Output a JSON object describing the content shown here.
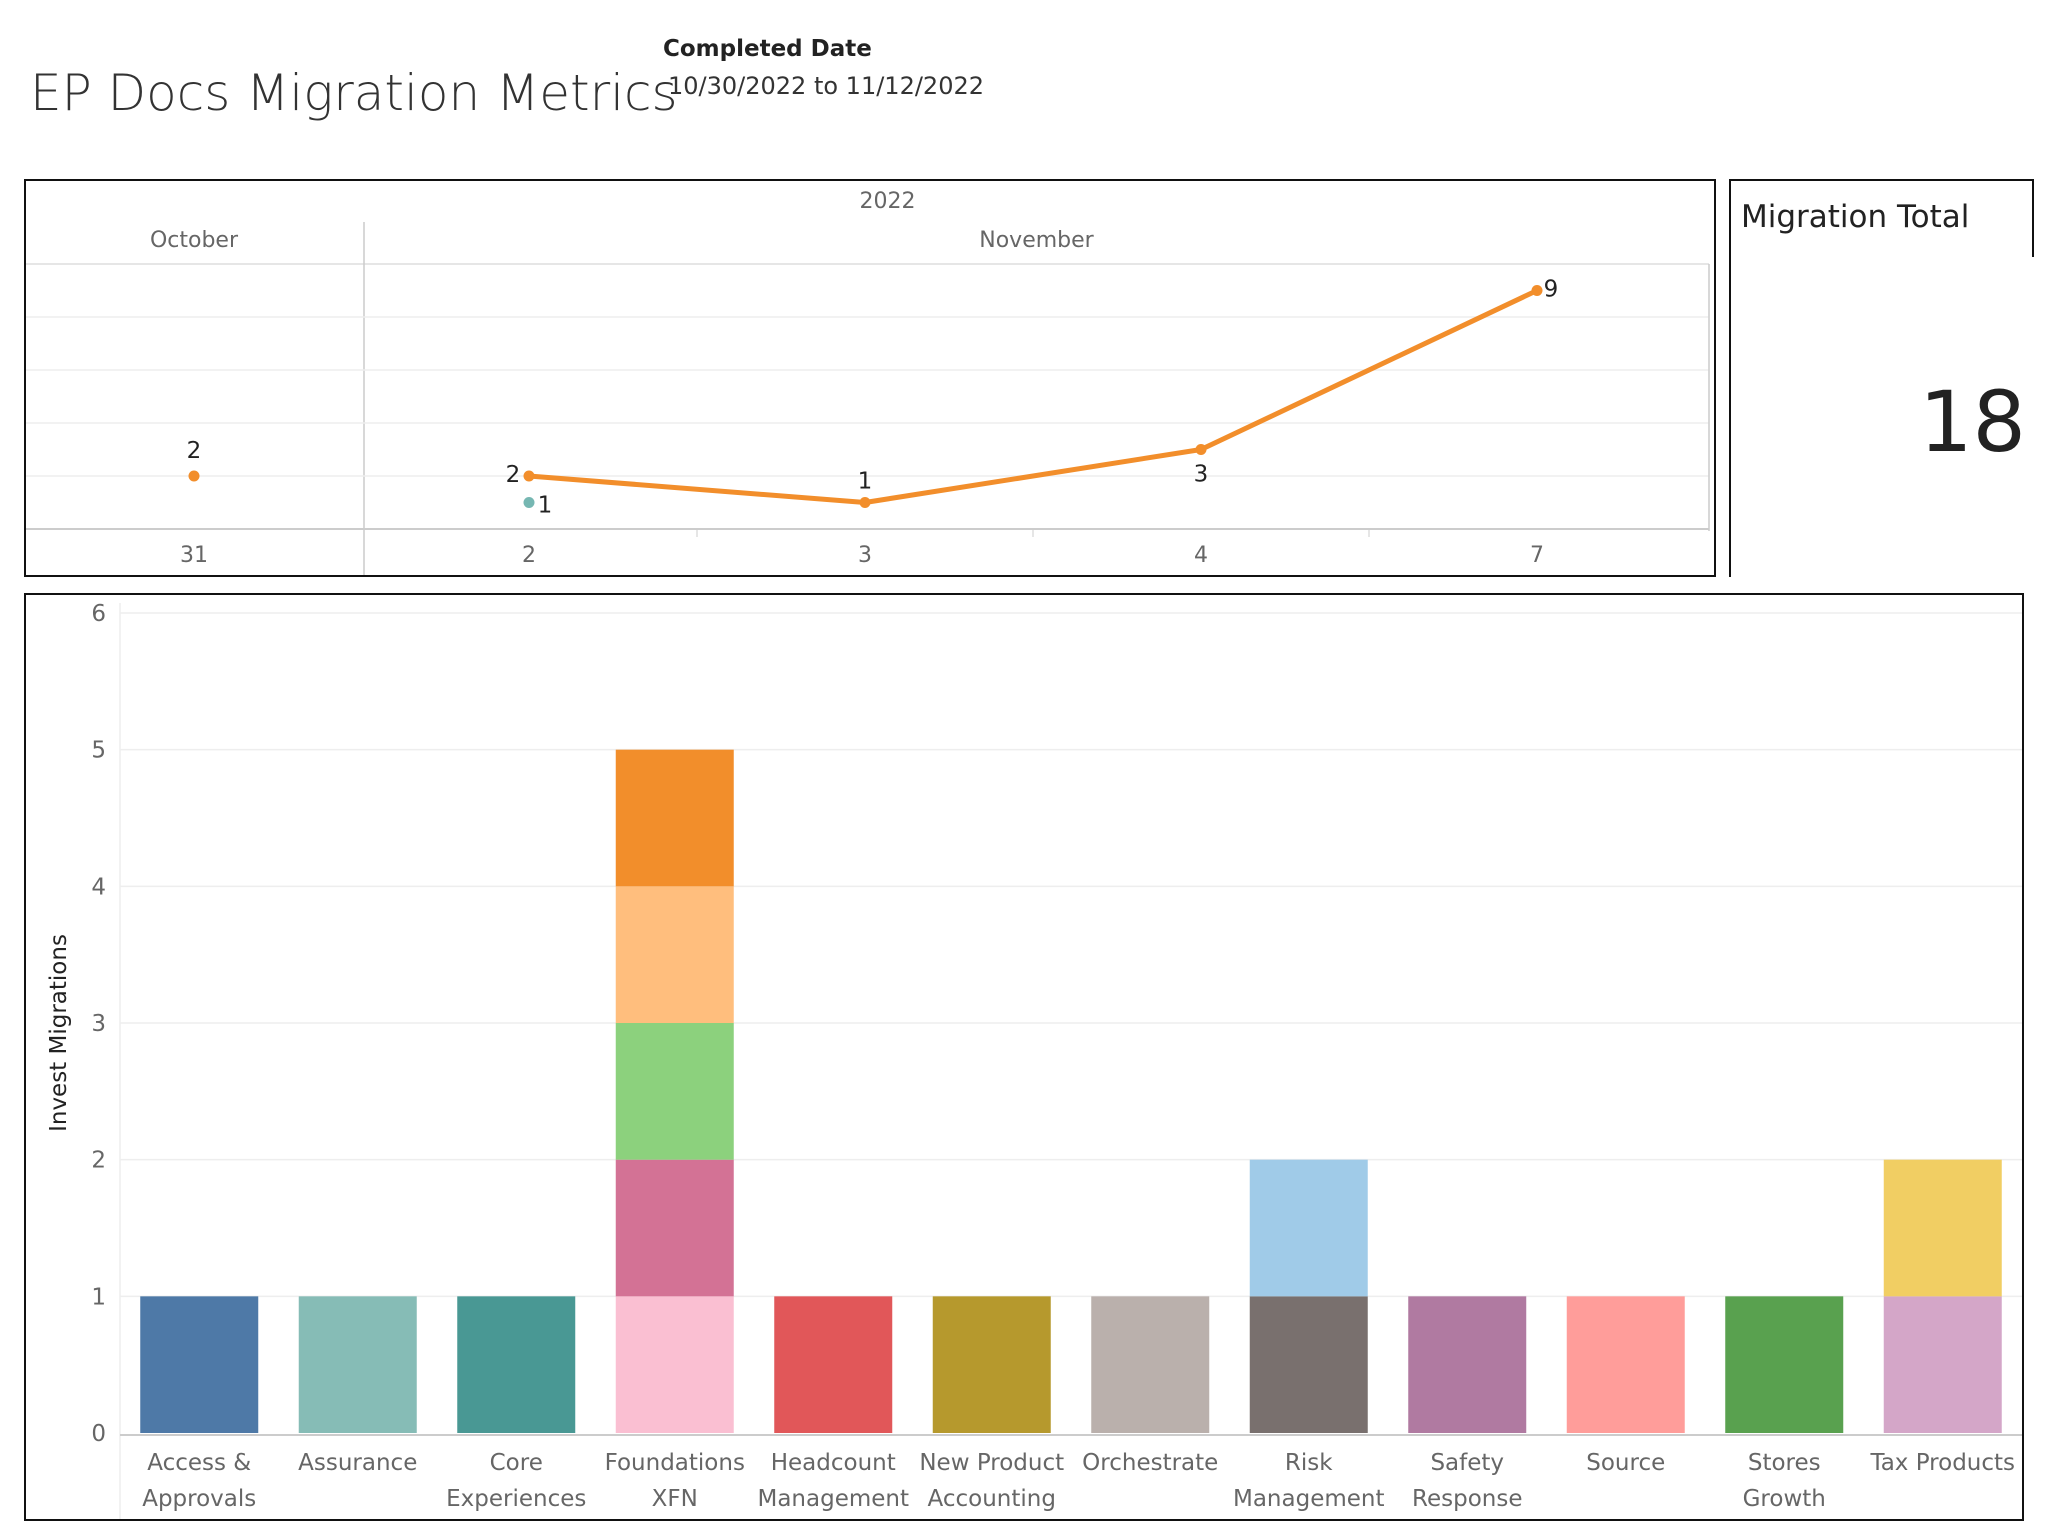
{
  "header": {
    "title": "EP Docs Migration Metrics",
    "filter_label": "Completed Date",
    "filter_value": "10/30/2022 to 11/12/2022"
  },
  "kpi": {
    "title": "Migration Total",
    "value": "18"
  },
  "colors": {
    "line": "#f28e2b",
    "teal_point": "#76b7b2",
    "grid": "#eeeeee",
    "axis": "#cccccc"
  },
  "chart_data": [
    {
      "type": "line",
      "title": "",
      "year": "2022",
      "months": [
        "October",
        "November"
      ],
      "x": [
        "31",
        "2",
        "3",
        "4",
        "7"
      ],
      "series": [
        {
          "color": "#f28e2b",
          "values": [
            2,
            2,
            1,
            3,
            9
          ],
          "labels": [
            "2",
            "2",
            "1",
            "3",
            "9"
          ]
        },
        {
          "color": "#76b7b2",
          "points": [
            {
              "x": "2",
              "y": 1,
              "label": "1"
            }
          ]
        }
      ],
      "ylim": [
        0,
        10
      ],
      "grid": true
    },
    {
      "type": "bar",
      "stacked": true,
      "ylabel": "Invest Migrations",
      "ylim": [
        0,
        6
      ],
      "yticks": [
        "0",
        "1",
        "2",
        "3",
        "4",
        "5",
        "6"
      ],
      "categories": [
        [
          "Access &",
          "Approvals"
        ],
        [
          "Assurance"
        ],
        [
          "Core",
          "Experiences"
        ],
        [
          "Foundations",
          "XFN"
        ],
        [
          "Headcount",
          "Management"
        ],
        [
          "New Product",
          "Accounting"
        ],
        [
          "Orchestrate"
        ],
        [
          "Risk",
          "Management"
        ],
        [
          "Safety",
          "Response"
        ],
        [
          "Source"
        ],
        [
          "Stores",
          "Growth"
        ],
        [
          "Tax Products"
        ]
      ],
      "stacks": [
        [
          {
            "value": 1,
            "color": "#4e79a7"
          }
        ],
        [
          {
            "value": 1,
            "color": "#86bcb6"
          }
        ],
        [
          {
            "value": 1,
            "color": "#499894"
          }
        ],
        [
          {
            "value": 1,
            "color": "#fabfd2"
          },
          {
            "value": 1,
            "color": "#d37295"
          },
          {
            "value": 1,
            "color": "#8cd17d"
          },
          {
            "value": 1,
            "color": "#ffbe7d"
          },
          {
            "value": 1,
            "color": "#f28e2b"
          }
        ],
        [
          {
            "value": 1,
            "color": "#e15759"
          }
        ],
        [
          {
            "value": 1,
            "color": "#b6992d"
          }
        ],
        [
          {
            "value": 1,
            "color": "#bab0ac"
          }
        ],
        [
          {
            "value": 1,
            "color": "#79706e"
          },
          {
            "value": 1,
            "color": "#a0cbe8"
          }
        ],
        [
          {
            "value": 1,
            "color": "#b07aa1"
          }
        ],
        [
          {
            "value": 1,
            "color": "#ff9d9a"
          }
        ],
        [
          {
            "value": 1,
            "color": "#59a14f"
          }
        ],
        [
          {
            "value": 1,
            "color": "#d4a6c8"
          },
          {
            "value": 1,
            "color": "#f1ce63"
          }
        ]
      ]
    }
  ]
}
